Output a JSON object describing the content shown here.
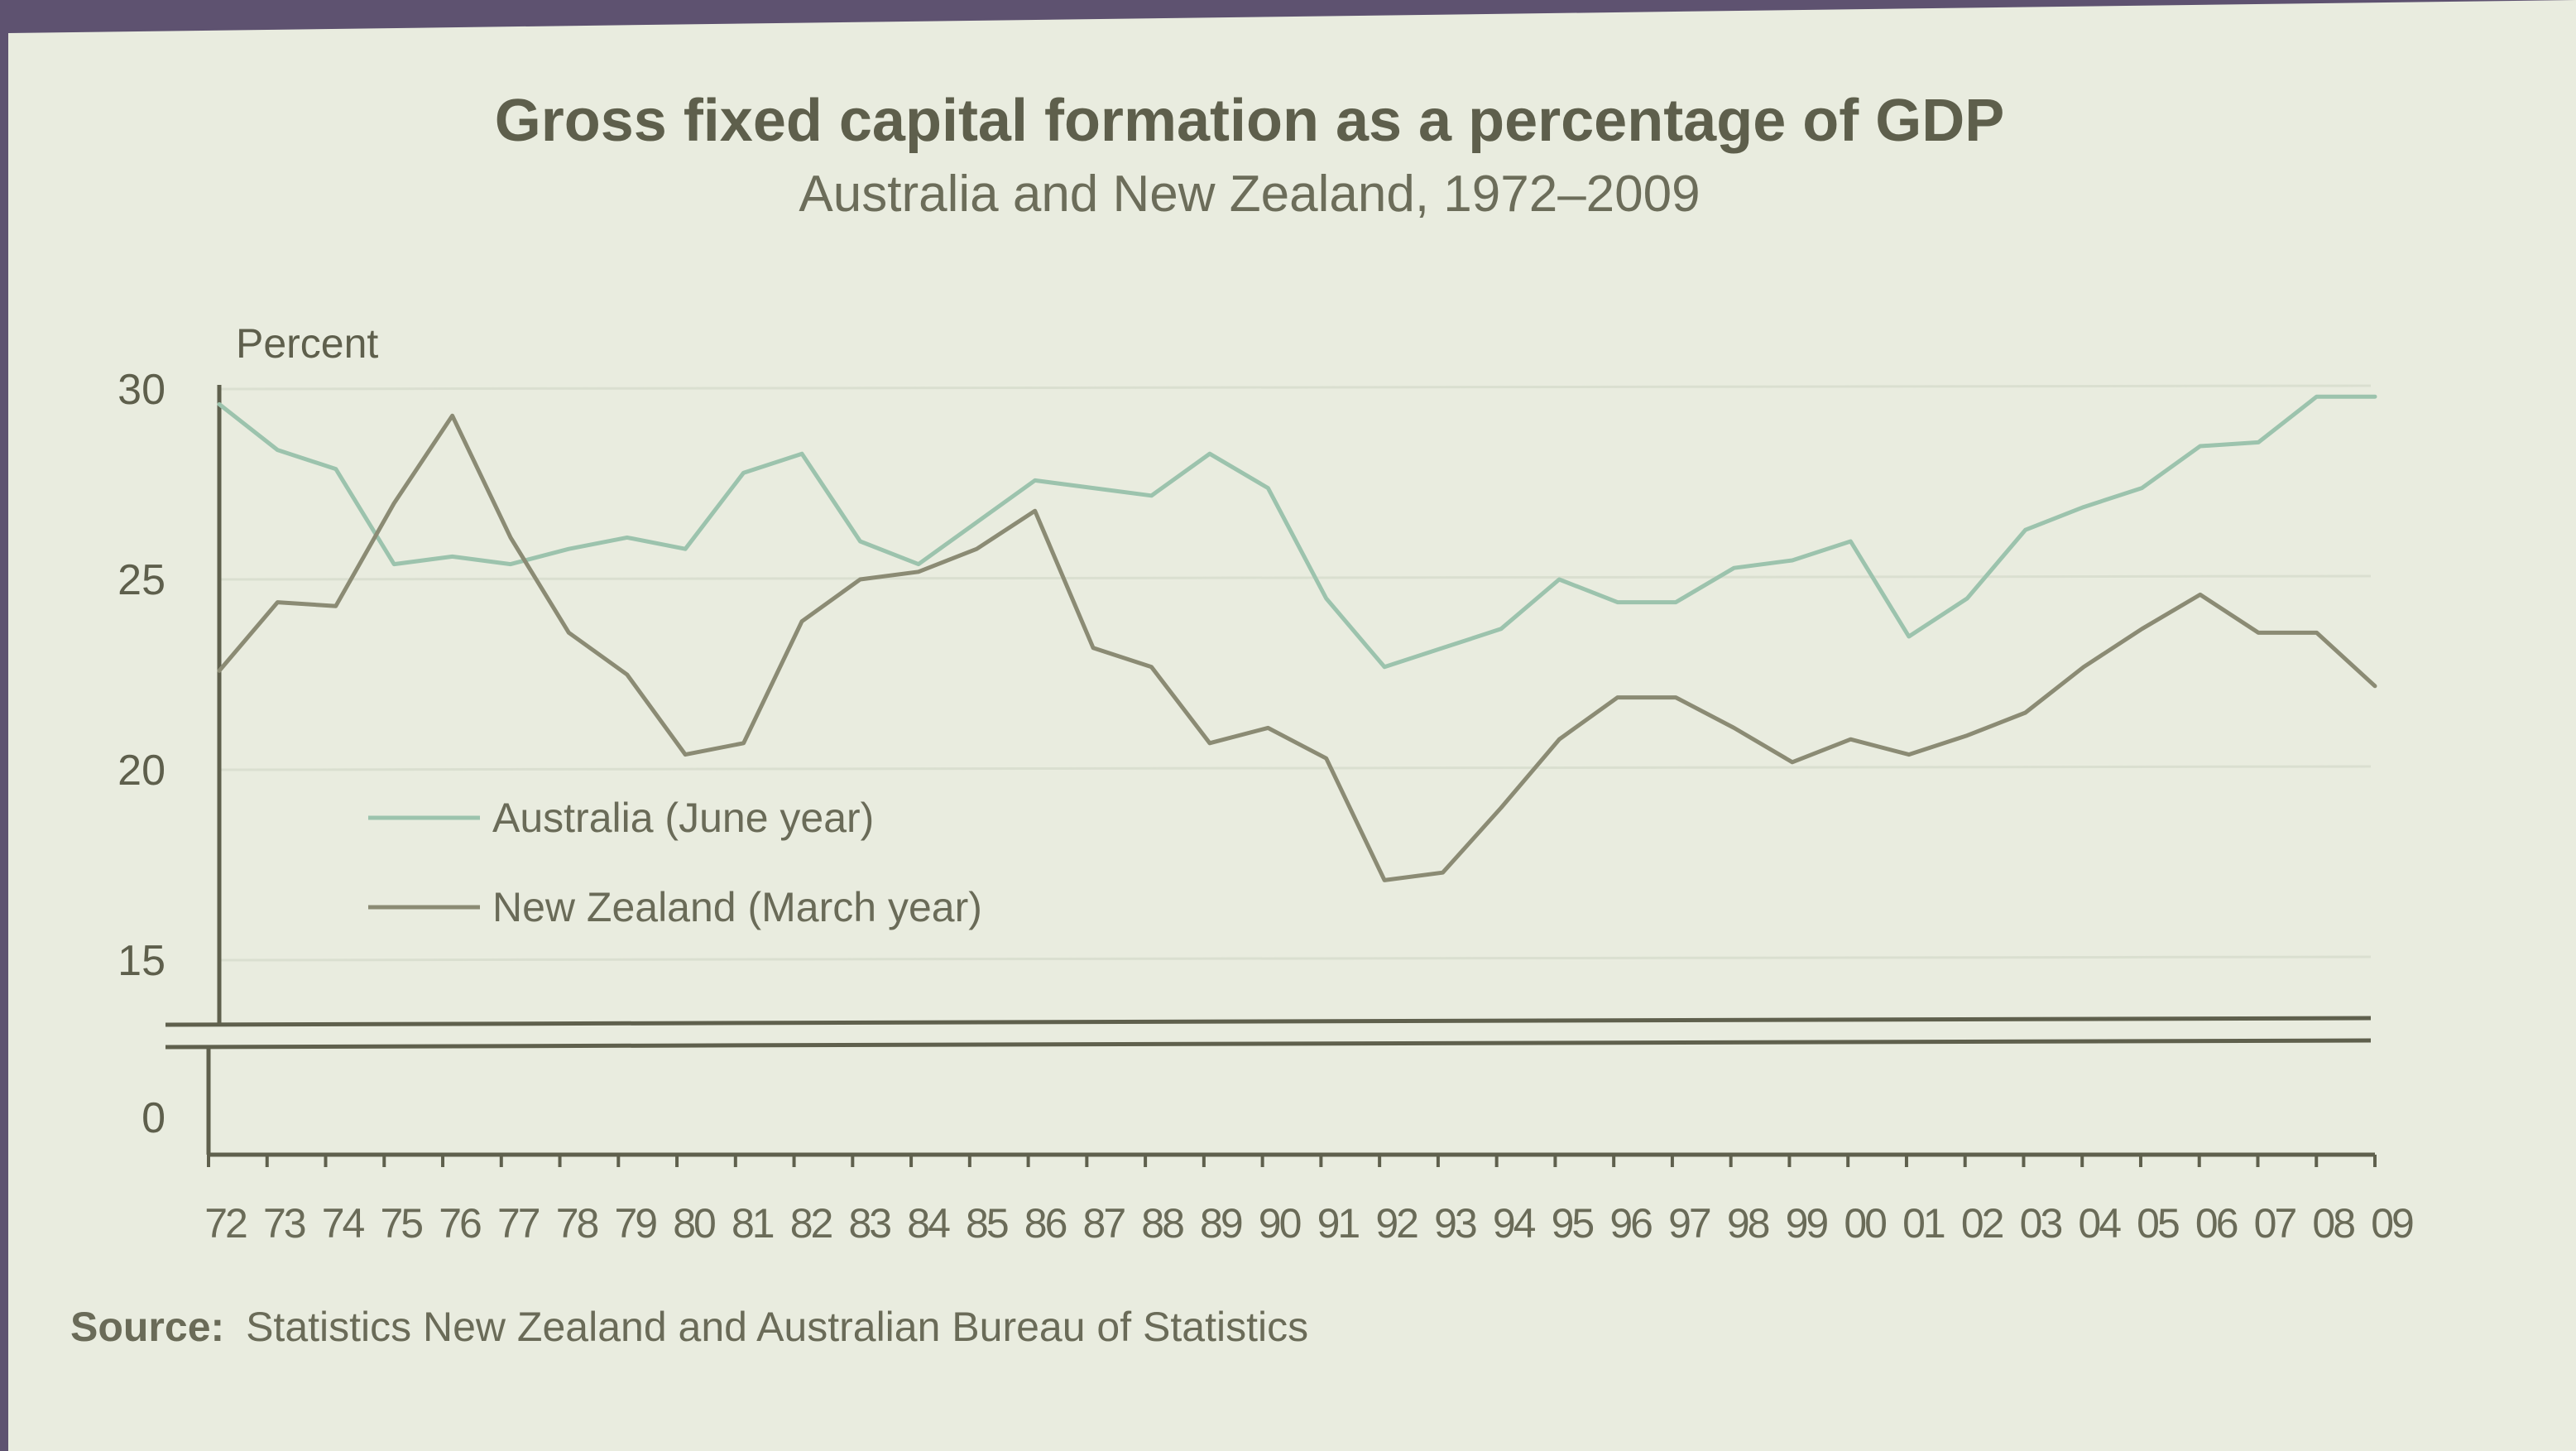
{
  "chart_data": {
    "type": "line",
    "title": "Gross fixed capital formation as a percentage of GDP",
    "subtitle": "Australia and New Zealand, 1972–2009",
    "ylabel": "Percent",
    "yticks": [
      "30",
      "25",
      "20",
      "15",
      "0"
    ],
    "ylim": [
      15,
      30
    ],
    "axis_break": true,
    "grid": true,
    "legend_position": "middle-left",
    "x": [
      "72",
      "73",
      "74",
      "75",
      "76",
      "77",
      "78",
      "79",
      "80",
      "81",
      "82",
      "83",
      "84",
      "85",
      "86",
      "87",
      "88",
      "89",
      "90",
      "91",
      "92",
      "93",
      "94",
      "95",
      "96",
      "97",
      "98",
      "99",
      "00",
      "01",
      "02",
      "03",
      "04",
      "05",
      "06",
      "07",
      "08",
      "09"
    ],
    "series": [
      {
        "name": "Australia (June year)",
        "color": "#9cc3ad",
        "values": [
          29.6,
          28.4,
          27.9,
          25.4,
          25.6,
          25.4,
          25.8,
          26.1,
          25.8,
          27.8,
          28.3,
          26.0,
          25.4,
          26.5,
          27.6,
          27.4,
          27.2,
          28.3,
          27.4,
          24.5,
          22.7,
          23.2,
          23.7,
          25.0,
          24.4,
          24.4,
          25.3,
          25.5,
          26.0,
          23.5,
          24.5,
          26.3,
          26.9,
          27.4,
          28.5,
          28.6,
          29.8,
          29.8
        ]
      },
      {
        "name": "New Zealand (March year)",
        "color": "#8b8b74",
        "values": [
          22.6,
          24.4,
          24.3,
          27.0,
          29.3,
          26.1,
          23.6,
          22.5,
          20.4,
          20.7,
          23.9,
          25.0,
          25.2,
          25.8,
          26.8,
          23.2,
          22.7,
          20.7,
          21.1,
          20.3,
          17.1,
          17.3,
          19.0,
          20.8,
          21.9,
          21.9,
          21.1,
          20.2,
          20.8,
          20.4,
          20.9,
          21.5,
          22.7,
          23.7,
          24.6,
          23.6,
          23.6,
          22.2
        ]
      }
    ]
  },
  "source": {
    "label": "Source:",
    "text": "Statistics New Zealand and  Australian Bureau of Statistics"
  }
}
